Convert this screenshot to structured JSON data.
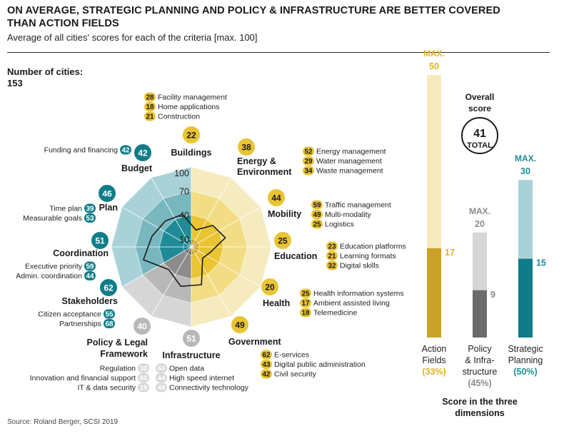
{
  "header": {
    "title_line1": "ON AVERAGE, STRATEGIC PLANNING AND POLICY & INFRASTRUCTURE ARE BETTER COVERED",
    "title_line2": "THAN ACTION FIELDS",
    "subtitle": "Average of all cities' scores for each of the criteria [max. 100]"
  },
  "cities": {
    "label": "Number of cities:",
    "value": "153"
  },
  "source": "Source: Roland Berger, SCSI 2019",
  "colors": {
    "action": "#e9c433",
    "action_light": "#f3dd84",
    "action_pale": "#f6ebbf",
    "action_dark": "#c9a227",
    "policy": "#8c8c8c",
    "policy_light": "#b8b8b8",
    "policy_pale": "#d6d6d6",
    "policy_dark": "#6b6b6b",
    "strategy": "#1f8b96",
    "strategy_light": "#79b7bf",
    "strategy_pale": "#a9d2d8",
    "strategy_dark": "#0f7d89"
  },
  "chart_data": [
    {
      "type": "radar",
      "axis_ticks": [
        "100",
        "70",
        "40",
        "10"
      ],
      "categories": [
        {
          "name": "Buildings",
          "score": "22",
          "group": "action",
          "subs": [
            {
              "v": "28",
              "t": "Facility management"
            },
            {
              "v": "18",
              "t": "Home applications"
            },
            {
              "v": "21",
              "t": "Construction"
            }
          ]
        },
        {
          "name": "Energy & Environment",
          "score": "38",
          "group": "action",
          "subs": [
            {
              "v": "52",
              "t": "Energy management"
            },
            {
              "v": "29",
              "t": "Water management"
            },
            {
              "v": "34",
              "t": "Waste management"
            }
          ]
        },
        {
          "name": "Mobility",
          "score": "44",
          "group": "action",
          "subs": [
            {
              "v": "59",
              "t": "Traffic management"
            },
            {
              "v": "49",
              "t": "Multi-modality"
            },
            {
              "v": "25",
              "t": "Logistics"
            }
          ]
        },
        {
          "name": "Education",
          "score": "25",
          "group": "action",
          "subs": [
            {
              "v": "23",
              "t": "Education platforms"
            },
            {
              "v": "21",
              "t": "Learning formats"
            },
            {
              "v": "32",
              "t": "Digital skills"
            }
          ]
        },
        {
          "name": "Health",
          "score": "20",
          "group": "action",
          "subs": [
            {
              "v": "25",
              "t": "Health information systems"
            },
            {
              "v": "17",
              "t": "Ambient assisted living"
            },
            {
              "v": "18",
              "t": "Telemedicine"
            }
          ]
        },
        {
          "name": "Government",
          "score": "49",
          "group": "action",
          "subs": [
            {
              "v": "62",
              "t": "E-services"
            },
            {
              "v": "43",
              "t": "Digital public administration"
            },
            {
              "v": "42",
              "t": "Civil security"
            }
          ]
        },
        {
          "name": "Infrastructure",
          "score": "51",
          "group": "policy",
          "subs": [
            {
              "v": "60",
              "t": "Open data"
            },
            {
              "v": "44",
              "t": "High speed internet"
            },
            {
              "v": "48",
              "t": "Connectivity technology"
            }
          ]
        },
        {
          "name": "Policy & Legal Framework",
          "score": "40",
          "group": "policy",
          "subs": [
            {
              "v": "30",
              "t": "Regulation"
            },
            {
              "v": "60",
              "t": "Innovation and financial support"
            },
            {
              "v": "29",
              "t": "IT & data security"
            }
          ]
        },
        {
          "name": "Stakeholders",
          "score": "62",
          "group": "strategy",
          "subs": [
            {
              "v": "55",
              "t": "Citizen acceptance"
            },
            {
              "v": "68",
              "t": "Partnerships"
            }
          ]
        },
        {
          "name": "Coordination",
          "score": "51",
          "group": "strategy",
          "subs": [
            {
              "v": "59",
              "t": "Executive priority"
            },
            {
              "v": "44",
              "t": "Admin. coordination"
            }
          ]
        },
        {
          "name": "Plan",
          "score": "46",
          "group": "strategy",
          "subs": [
            {
              "v": "39",
              "t": "Time plan"
            },
            {
              "v": "53",
              "t": "Measurable goals"
            }
          ]
        },
        {
          "name": "Budget",
          "score": "42",
          "group": "strategy",
          "subs": [
            {
              "v": "42",
              "t": "Funding and financing"
            }
          ]
        }
      ]
    },
    {
      "type": "bar",
      "title_line1": "Score in the three",
      "title_line2": "dimensions",
      "overall_label_1": "Overall",
      "overall_label_2": "score",
      "overall_value": "41",
      "overall_total": "TOTAL",
      "max_label": "MAX.",
      "series": [
        {
          "key": "action",
          "value": 17,
          "max": 50,
          "label_lines": [
            "Action",
            "Fields"
          ],
          "pct": "(33%)"
        },
        {
          "key": "policy",
          "value": 9,
          "max": 20,
          "label_lines": [
            "Policy",
            "& Infra-",
            "structure"
          ],
          "pct": "(45%)"
        },
        {
          "key": "strategy",
          "value": 15,
          "max": 30,
          "label_lines": [
            "Strategic",
            "Planning"
          ],
          "pct": "(50%)"
        }
      ]
    }
  ]
}
